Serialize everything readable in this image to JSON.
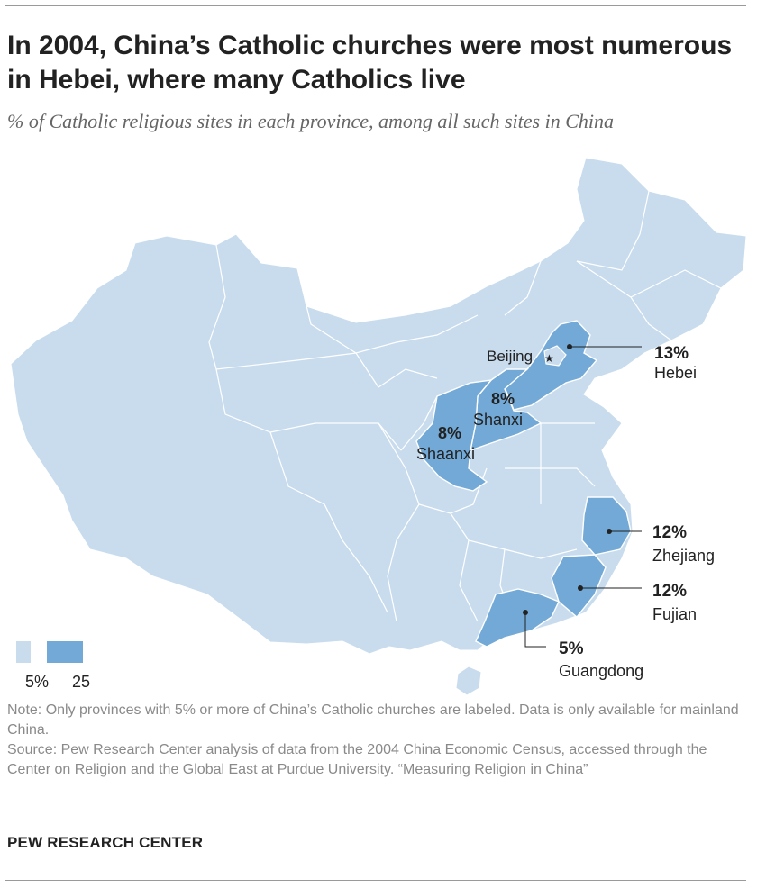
{
  "title": "In 2004, China’s Catholic churches were most numerous in Hebei, where many Catholics live",
  "subtitle": "% of Catholic religious sites in each province, among all such sites in China",
  "colors": {
    "low": "#c8dcee",
    "high": "#72a9d6",
    "border": "#ffffff",
    "leader": "#222222"
  },
  "map": {
    "capital_label": "Beijing",
    "regions": [
      {
        "name": "Hebei",
        "value": "13%"
      },
      {
        "name": "Shanxi",
        "value": "8%"
      },
      {
        "name": "Shaanxi",
        "value": "8%"
      },
      {
        "name": "Zhejiang",
        "value": "12%"
      },
      {
        "name": "Fujian",
        "value": "12%"
      },
      {
        "name": "Guangdong",
        "value": "5%"
      }
    ]
  },
  "legend": {
    "min_label": "5%",
    "max_label": "25"
  },
  "notes": {
    "note": "Note: Only provinces with 5% or more of China’s Catholic churches are labeled. Data is only available for mainland China.",
    "source": "Source: Pew Research Center analysis of data from the 2004 China Economic Census, accessed through the Center on Religion and the Global East at Purdue University. “Measuring Religion in China”"
  },
  "brand": "PEW RESEARCH CENTER"
}
